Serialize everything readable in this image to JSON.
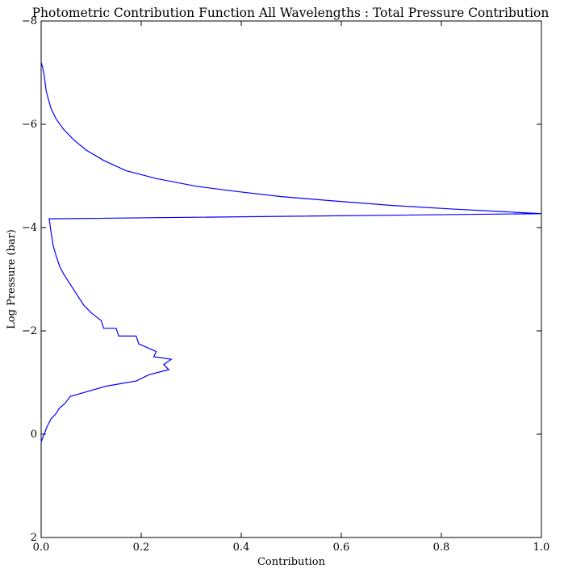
{
  "chart_data": {
    "type": "line",
    "title": "Photometric Contribution Function All Wavelengths : Total Pressure Contribution",
    "xlabel": "Contribution",
    "ylabel": "Log Pressure (bar)",
    "xlim": [
      0.0,
      1.0
    ],
    "ylim": [
      2,
      -8
    ],
    "x_ticks": [
      0.0,
      0.2,
      0.4,
      0.6,
      0.8,
      1.0
    ],
    "x_tick_labels": [
      "0.0",
      "0.2",
      "0.4",
      "0.6",
      "0.8",
      "1.0"
    ],
    "y_ticks": [
      -8,
      -6,
      -4,
      -2,
      0,
      2
    ],
    "y_tick_labels": [
      "−8",
      "−6",
      "−4",
      "−2",
      "0",
      "2"
    ],
    "grid": false,
    "line_color": "#0000ff",
    "series": [
      {
        "x": [
          0.0,
          0.003,
          0.006,
          0.008,
          0.01,
          0.014,
          0.02,
          0.03,
          0.045,
          0.065,
          0.09,
          0.125,
          0.17,
          0.23,
          0.31,
          0.39,
          0.48,
          0.58,
          0.7,
          0.82,
          0.92,
          1.0,
          0.016,
          0.02,
          0.024,
          0.03,
          0.037,
          0.045,
          0.055,
          0.065,
          0.075,
          0.085,
          0.1,
          0.12,
          0.125,
          0.15,
          0.155,
          0.19,
          0.195,
          0.23,
          0.225,
          0.26,
          0.245,
          0.255,
          0.215,
          0.19,
          0.13,
          0.058,
          0.048,
          0.036,
          0.03,
          0.02,
          0.012,
          0.006,
          0.0
        ],
        "y": [
          -7.2,
          -7.1,
          -6.95,
          -6.8,
          -6.65,
          -6.5,
          -6.3,
          -6.1,
          -5.9,
          -5.7,
          -5.5,
          -5.3,
          -5.1,
          -4.95,
          -4.8,
          -4.7,
          -4.6,
          -4.52,
          -4.43,
          -4.36,
          -4.31,
          -4.27,
          -4.17,
          -3.9,
          -3.65,
          -3.45,
          -3.25,
          -3.1,
          -2.95,
          -2.8,
          -2.65,
          -2.5,
          -2.35,
          -2.2,
          -2.05,
          -2.05,
          -1.9,
          -1.9,
          -1.75,
          -1.6,
          -1.5,
          -1.45,
          -1.35,
          -1.25,
          -1.15,
          -1.03,
          -0.93,
          -0.73,
          -0.6,
          -0.5,
          -0.4,
          -0.3,
          -0.15,
          0.0,
          0.15
        ]
      }
    ]
  }
}
